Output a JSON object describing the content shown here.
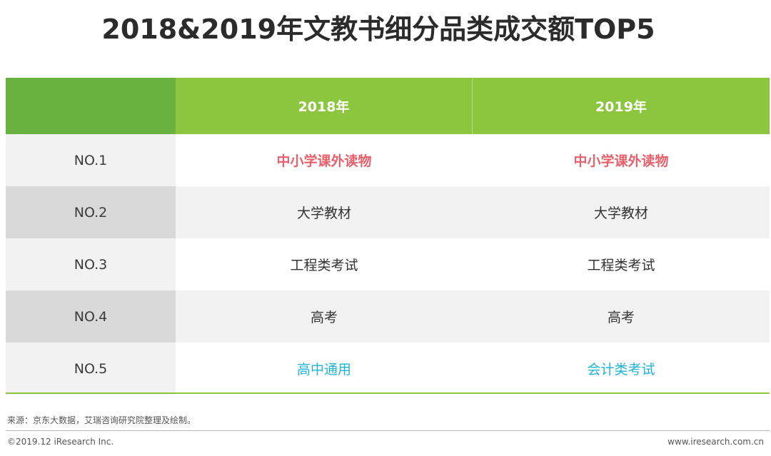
{
  "title": "2018&2019年文教书细分品类成交额TOP5",
  "table": {
    "headers": [
      "",
      "2018年",
      "2019年"
    ],
    "rows": [
      {
        "rank": "NO.1",
        "y2018": "中小学课外读物",
        "y2019": "中小学课外读物"
      },
      {
        "rank": "NO.2",
        "y2018": "大学教材",
        "y2019": "大学教材"
      },
      {
        "rank": "NO.3",
        "y2018": "工程类考试",
        "y2019": "工程类考试"
      },
      {
        "rank": "NO.4",
        "y2018": "高考",
        "y2019": "高考"
      },
      {
        "rank": "NO.5",
        "y2018": "高中通用",
        "y2019": "会计类考试"
      }
    ]
  },
  "source": "来源：京东大数据，艾瑞咨询研究院整理及绘制。",
  "footer": {
    "copyright": "©2019.12 iResearch Inc.",
    "website": "www.iresearch.com.cn"
  },
  "colors": {
    "header_green": "#8cc63f",
    "header_dark_green": "#6ab23f",
    "highlight_red": "#e8606a",
    "highlight_blue": "#1fb5d6"
  }
}
